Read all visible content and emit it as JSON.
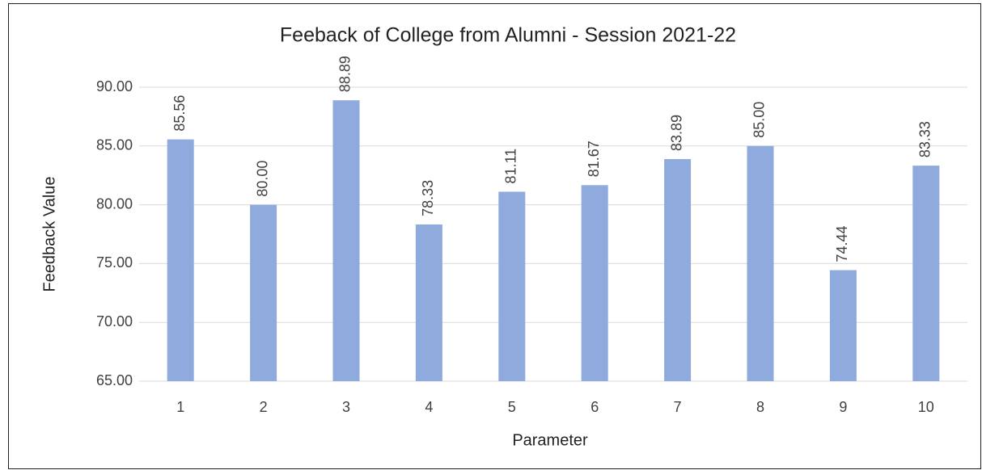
{
  "chart_data": {
    "type": "bar",
    "title": "Feeback of College from Alumni - Session 2021-22",
    "x_label": "Parameter",
    "y_label": "Feedback Value",
    "categories": [
      "1",
      "2",
      "3",
      "4",
      "5",
      "6",
      "7",
      "8",
      "9",
      "10"
    ],
    "values": [
      85.56,
      80,
      88.89,
      78.33,
      81.11,
      81.67,
      83.89,
      85,
      74.44,
      83.33
    ],
    "value_labels": [
      "85.56",
      "80.00",
      "88.89",
      "78.33",
      "81.11",
      "81.67",
      "83.89",
      "85.00",
      "74.44",
      "83.33"
    ],
    "color": "#8faadc",
    "ylim": [
      65,
      90
    ],
    "yticks": [
      {
        "value": 65,
        "label": "65.00"
      },
      {
        "value": 70,
        "label": "70.00"
      },
      {
        "value": 75,
        "label": "75.00"
      },
      {
        "value": 80,
        "label": "80.00"
      },
      {
        "value": 85,
        "label": "85.00"
      },
      {
        "value": 90,
        "label": "90.00"
      }
    ],
    "grid": true
  }
}
